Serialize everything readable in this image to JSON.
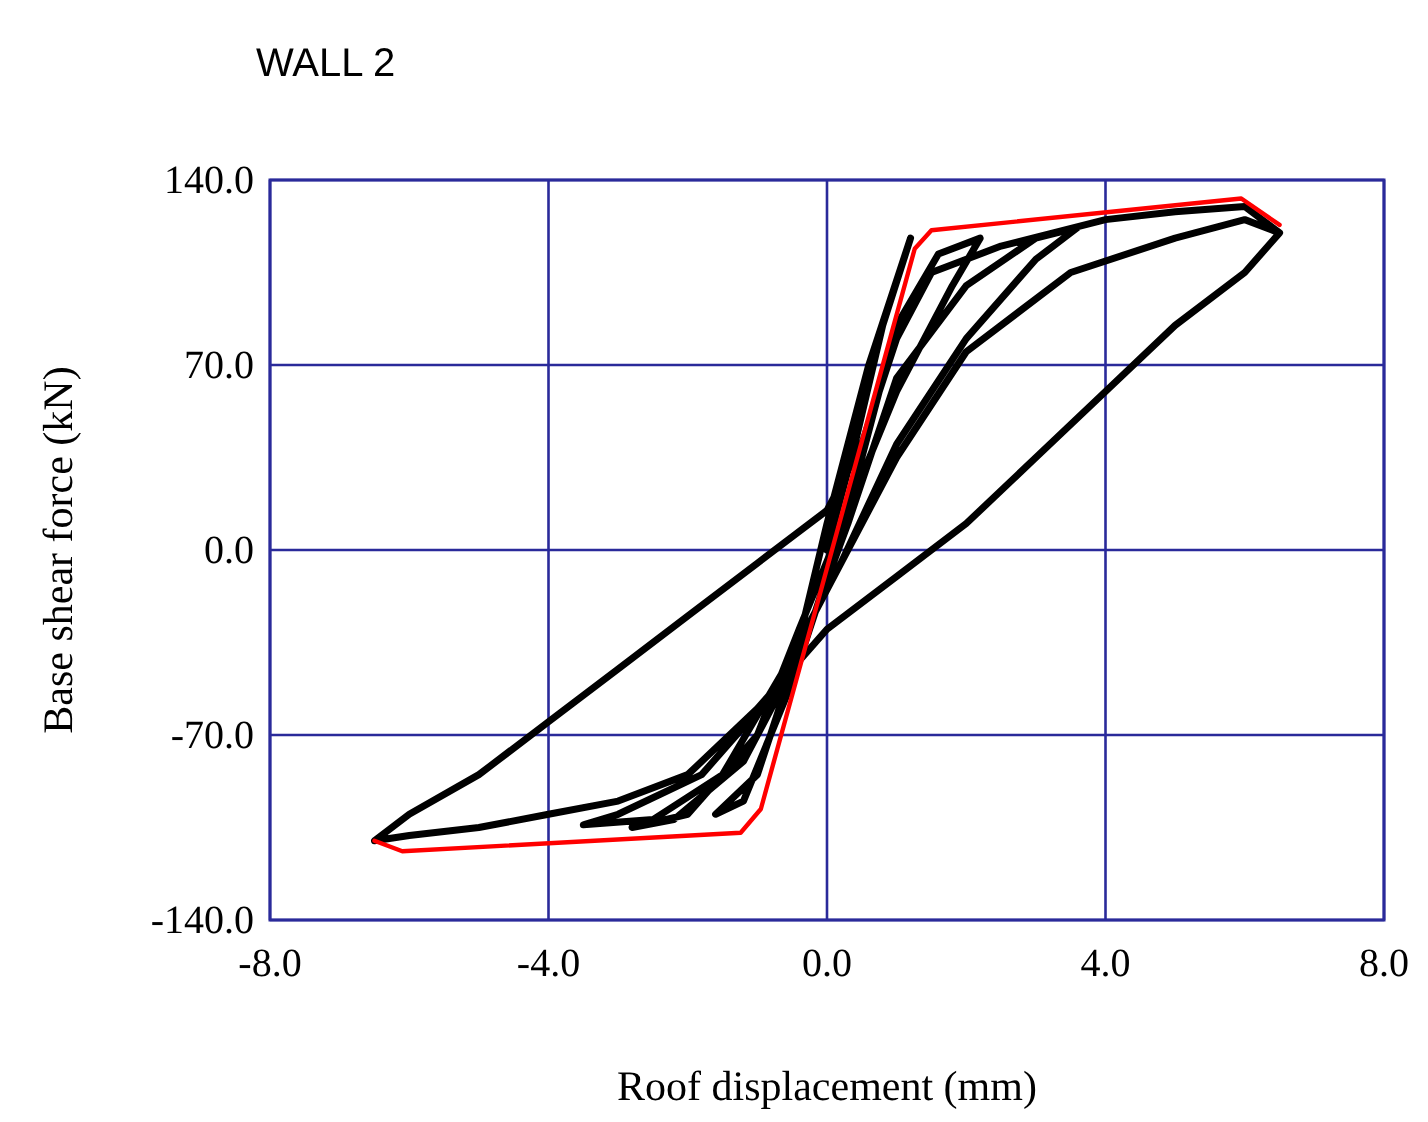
{
  "chart_data": {
    "type": "line",
    "title": "WALL 2",
    "xlabel": "Roof displacement (mm)",
    "ylabel": "Base shear force (kN)",
    "xlim": [
      -8,
      8
    ],
    "ylim": [
      -140,
      140
    ],
    "xticks": [
      {
        "value": -8,
        "label": "-8.0"
      },
      {
        "value": -4,
        "label": "-4.0"
      },
      {
        "value": 0,
        "label": "0.0"
      },
      {
        "value": 4,
        "label": "4.0"
      },
      {
        "value": 8,
        "label": "8.0"
      }
    ],
    "yticks": [
      {
        "value": -140,
        "label": "-140.0"
      },
      {
        "value": -70,
        "label": "-70.0"
      },
      {
        "value": 0,
        "label": "0.0"
      },
      {
        "value": 70,
        "label": "70.0"
      },
      {
        "value": 140,
        "label": "140.0"
      }
    ],
    "grid": true,
    "marker": "none",
    "line_style": "solid",
    "series": [
      {
        "color": "#000000",
        "x": [
          0,
          0.4,
          0.8,
          1.2,
          0.6,
          0,
          -0.5,
          -1,
          -1.6,
          -1.2,
          -0.5,
          0,
          0.5,
          1,
          1.6,
          2.2,
          1.8,
          1,
          0.3,
          -0.4,
          -1,
          -2,
          -2.8,
          -2.2,
          -1.2,
          -0.4,
          0.3,
          1,
          2,
          3,
          3.6,
          3,
          2,
          1,
          0.2,
          -0.5,
          -1.5,
          -2.5,
          -3.5,
          -3,
          -1.8,
          -0.8,
          0,
          1,
          2,
          3.5,
          5,
          6,
          6.5,
          6,
          5,
          4,
          3,
          2,
          1,
          0,
          -1,
          -2,
          -3,
          -4,
          -5,
          -6,
          -6.5,
          -6,
          -5,
          -4,
          -3,
          -2,
          -1,
          -0.5,
          0,
          0.5,
          1,
          1.5,
          2.5,
          4,
          5,
          6,
          6.5
        ],
        "values": [
          0,
          40,
          85,
          118,
          70,
          10,
          -45,
          -85,
          -100,
          -95,
          -50,
          -10,
          35,
          85,
          112,
          118,
          100,
          60,
          15,
          -30,
          -70,
          -100,
          -105,
          -102,
          -80,
          -40,
          10,
          65,
          100,
          118,
          122,
          110,
          80,
          40,
          -5,
          -40,
          -85,
          -102,
          -104,
          -100,
          -85,
          -55,
          -15,
          35,
          75,
          105,
          118,
          125,
          120,
          105,
          85,
          60,
          35,
          10,
          -10,
          -30,
          -60,
          -85,
          -95,
          -100,
          -105,
          -108,
          -110,
          -100,
          -85,
          -65,
          -45,
          -25,
          -5,
          5,
          15,
          40,
          80,
          105,
          115,
          125,
          128,
          130,
          120
        ]
      },
      {
        "color": "#ff0000",
        "x": [
          -6.5,
          -6.1,
          -1.24,
          -0.95,
          1.26,
          1.5,
          5.95,
          6.5
        ],
        "values": [
          -110,
          -114,
          -107,
          -98,
          114,
          121,
          133,
          123
        ]
      }
    ]
  }
}
